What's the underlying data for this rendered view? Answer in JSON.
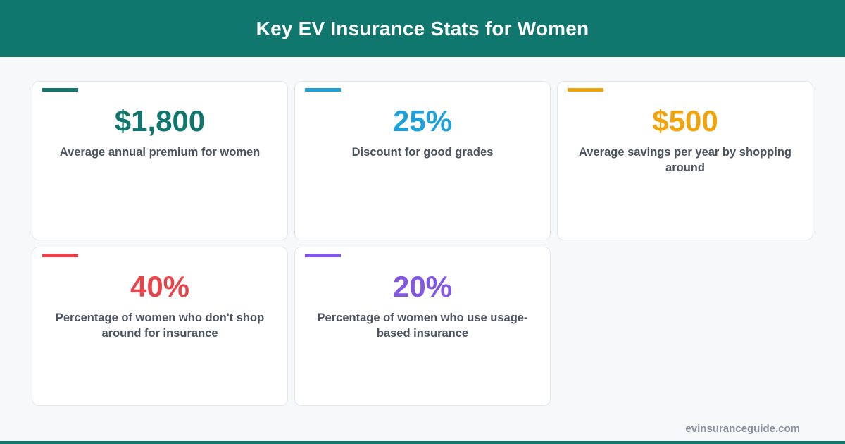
{
  "header": {
    "title": "Key EV Insurance Stats for Women"
  },
  "colors": {
    "brand": "#10776e",
    "teal": "#10776e",
    "blue": "#1ea1da",
    "orange": "#f0a30a",
    "red": "#e5454a",
    "purple": "#8257e6"
  },
  "stats": [
    {
      "value": "$1,800",
      "label": "Average annual premium for women",
      "color": "#10776e"
    },
    {
      "value": "25%",
      "label": "Discount for good grades",
      "color": "#1ea1da"
    },
    {
      "value": "$500",
      "label": "Average savings per year by shopping around",
      "color": "#f0a30a"
    },
    {
      "value": "40%",
      "label": "Percentage of women who don't shop around for insurance",
      "color": "#e5454a"
    },
    {
      "value": "20%",
      "label": "Percentage of women who use usage-based insurance",
      "color": "#8257e6"
    }
  ],
  "footer": {
    "url": "evinsuranceguide.com"
  }
}
